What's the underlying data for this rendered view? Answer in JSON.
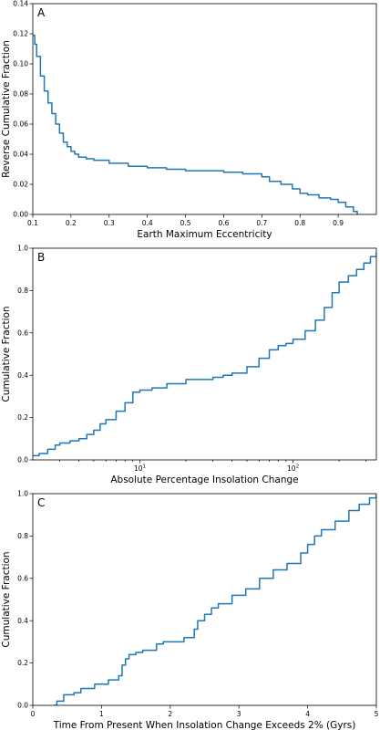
{
  "chart_data": [
    {
      "type": "line",
      "panel_label": "A",
      "xlabel": "Earth Maximum Eccentricity",
      "ylabel": "Reverse Cumulative Fraction",
      "xscale": "linear",
      "xlim": [
        0.1,
        1.0
      ],
      "ylim": [
        0.0,
        0.14
      ],
      "xticks": [
        {
          "value": 0.1,
          "label": "0.1"
        },
        {
          "value": 0.2,
          "label": "0.2"
        },
        {
          "value": 0.3,
          "label": "0.3"
        },
        {
          "value": 0.4,
          "label": "0.4"
        },
        {
          "value": 0.5,
          "label": "0.5"
        },
        {
          "value": 0.6,
          "label": "0.6"
        },
        {
          "value": 0.7,
          "label": "0.7"
        },
        {
          "value": 0.8,
          "label": "0.8"
        },
        {
          "value": 0.9,
          "label": "0.9"
        }
      ],
      "yticks": [
        {
          "value": 0.0,
          "label": "0.00"
        },
        {
          "value": 0.02,
          "label": "0.02"
        },
        {
          "value": 0.04,
          "label": "0.04"
        },
        {
          "value": 0.06,
          "label": "0.06"
        },
        {
          "value": 0.08,
          "label": "0.08"
        },
        {
          "value": 0.1,
          "label": "0.10"
        },
        {
          "value": 0.12,
          "label": "0.12"
        },
        {
          "value": 0.14,
          "label": "0.14"
        }
      ],
      "series": [
        {
          "x": [
            0.1,
            0.105,
            0.11,
            0.12,
            0.13,
            0.14,
            0.15,
            0.16,
            0.17,
            0.18,
            0.19,
            0.2,
            0.21,
            0.22,
            0.24,
            0.26,
            0.3,
            0.35,
            0.4,
            0.45,
            0.5,
            0.55,
            0.6,
            0.65,
            0.7,
            0.72,
            0.75,
            0.78,
            0.8,
            0.82,
            0.85,
            0.88,
            0.9,
            0.92,
            0.94,
            0.95
          ],
          "y": [
            0.119,
            0.113,
            0.105,
            0.092,
            0.082,
            0.074,
            0.067,
            0.06,
            0.054,
            0.048,
            0.045,
            0.042,
            0.04,
            0.038,
            0.037,
            0.036,
            0.034,
            0.032,
            0.031,
            0.03,
            0.029,
            0.029,
            0.028,
            0.027,
            0.025,
            0.022,
            0.02,
            0.017,
            0.014,
            0.013,
            0.011,
            0.01,
            0.008,
            0.005,
            0.002,
            0.0
          ]
        }
      ]
    },
    {
      "type": "line",
      "panel_label": "B",
      "xlabel": "Absolute Percentage Insolation Change",
      "ylabel": "Cumulative Fraction",
      "xscale": "log",
      "xlim": [
        2.0,
        350.0
      ],
      "ylim": [
        0.0,
        1.0
      ],
      "xticks": [
        {
          "value": 10,
          "label": "10",
          "sup": "1"
        },
        {
          "value": 100,
          "label": "10",
          "sup": "2"
        }
      ],
      "yticks": [
        {
          "value": 0.0,
          "label": "0.0"
        },
        {
          "value": 0.2,
          "label": "0.2"
        },
        {
          "value": 0.4,
          "label": "0.4"
        },
        {
          "value": 0.6,
          "label": "0.6"
        },
        {
          "value": 0.8,
          "label": "0.8"
        },
        {
          "value": 1.0,
          "label": "1.0"
        }
      ],
      "series": [
        {
          "x": [
            2.0,
            2.2,
            2.5,
            2.8,
            3.0,
            3.5,
            4.0,
            4.5,
            5.0,
            5.5,
            6.0,
            7.0,
            8.0,
            9.0,
            10.0,
            12.0,
            15.0,
            20.0,
            25.0,
            30.0,
            35.0,
            40.0,
            50.0,
            60.0,
            70.0,
            80.0,
            90.0,
            100.0,
            120.0,
            140.0,
            160.0,
            180.0,
            200.0,
            230.0,
            260.0,
            290.0,
            320.0,
            350.0
          ],
          "y": [
            0.02,
            0.03,
            0.05,
            0.07,
            0.08,
            0.09,
            0.1,
            0.12,
            0.14,
            0.17,
            0.19,
            0.23,
            0.27,
            0.32,
            0.33,
            0.34,
            0.36,
            0.38,
            0.38,
            0.39,
            0.4,
            0.41,
            0.44,
            0.48,
            0.52,
            0.54,
            0.55,
            0.57,
            0.61,
            0.66,
            0.72,
            0.79,
            0.84,
            0.87,
            0.9,
            0.93,
            0.96,
            0.98
          ]
        }
      ]
    },
    {
      "type": "line",
      "panel_label": "C",
      "xlabel": "Time From Present When Insolation Change Exceeds 2% (Gyrs)",
      "ylabel": "Cumulative Fraction",
      "xscale": "linear",
      "xlim": [
        0.0,
        5.0
      ],
      "ylim": [
        0.0,
        1.0
      ],
      "xticks": [
        {
          "value": 0,
          "label": "0"
        },
        {
          "value": 1,
          "label": "1"
        },
        {
          "value": 2,
          "label": "2"
        },
        {
          "value": 3,
          "label": "3"
        },
        {
          "value": 4,
          "label": "4"
        },
        {
          "value": 5,
          "label": "5"
        }
      ],
      "yticks": [
        {
          "value": 0.0,
          "label": "0.0"
        },
        {
          "value": 0.2,
          "label": "0.2"
        },
        {
          "value": 0.4,
          "label": "0.4"
        },
        {
          "value": 0.6,
          "label": "0.6"
        },
        {
          "value": 0.8,
          "label": "0.8"
        },
        {
          "value": 1.0,
          "label": "1.0"
        }
      ],
      "series": [
        {
          "x": [
            0.3,
            0.35,
            0.45,
            0.6,
            0.7,
            0.9,
            1.1,
            1.25,
            1.3,
            1.35,
            1.4,
            1.5,
            1.6,
            1.8,
            1.9,
            2.0,
            2.2,
            2.35,
            2.4,
            2.5,
            2.6,
            2.7,
            2.9,
            3.1,
            3.3,
            3.5,
            3.7,
            3.9,
            4.0,
            4.1,
            4.2,
            4.4,
            4.6,
            4.75,
            4.9,
            5.0
          ],
          "y": [
            0.0,
            0.02,
            0.05,
            0.06,
            0.08,
            0.1,
            0.12,
            0.14,
            0.19,
            0.22,
            0.24,
            0.25,
            0.26,
            0.29,
            0.3,
            0.3,
            0.32,
            0.36,
            0.4,
            0.43,
            0.46,
            0.48,
            0.52,
            0.55,
            0.6,
            0.64,
            0.67,
            0.72,
            0.76,
            0.8,
            0.83,
            0.87,
            0.92,
            0.95,
            0.98,
            1.0
          ]
        }
      ]
    }
  ],
  "colors": {
    "series": "#1f77b4",
    "axes": "#000000",
    "background": "#ffffff"
  }
}
